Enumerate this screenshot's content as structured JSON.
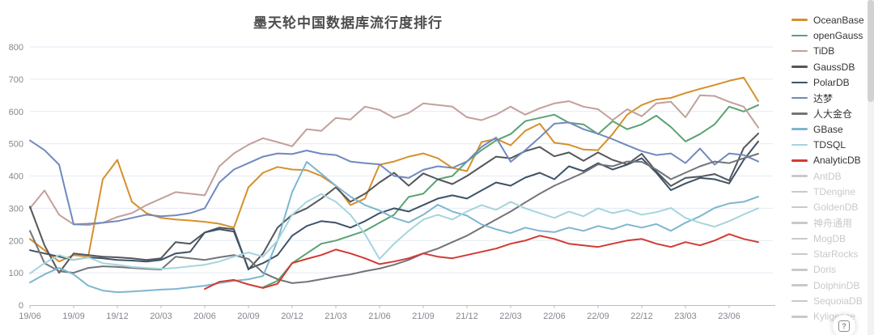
{
  "help_button": {
    "glyph": "?"
  },
  "legend": {
    "items": [
      {
        "label": "OceanBase",
        "color": "#D6902C",
        "enabled": true
      },
      {
        "label": "openGauss",
        "color": "#5BA272",
        "enabled": true
      },
      {
        "label": "TiDB",
        "color": "#C2A09A",
        "enabled": true
      },
      {
        "label": "GaussDB",
        "color": "#54565A",
        "enabled": true
      },
      {
        "label": "PolarDB",
        "color": "#3E5266",
        "enabled": true
      },
      {
        "label": "达梦",
        "color": "#7189BE",
        "enabled": true
      },
      {
        "label": "人大金仓",
        "color": "#737478",
        "enabled": true
      },
      {
        "label": "GBase",
        "color": "#7EB6CF",
        "enabled": true
      },
      {
        "label": "TDSQL",
        "color": "#A5D5DC",
        "enabled": true
      },
      {
        "label": "AnalyticDB",
        "color": "#D23A33",
        "enabled": true
      },
      {
        "label": "AntDB",
        "color": "#C8C9CC",
        "enabled": false
      },
      {
        "label": "TDengine",
        "color": "#C8C9CC",
        "enabled": false
      },
      {
        "label": "GoldenDB",
        "color": "#C8C9CC",
        "enabled": false
      },
      {
        "label": "神舟通用",
        "color": "#C8C9CC",
        "enabled": false
      },
      {
        "label": "MogDB",
        "color": "#C8C9CC",
        "enabled": false
      },
      {
        "label": "StarRocks",
        "color": "#C8C9CC",
        "enabled": false
      },
      {
        "label": "Doris",
        "color": "#C8C9CC",
        "enabled": false
      },
      {
        "label": "DolphinDB",
        "color": "#C8C9CC",
        "enabled": false
      },
      {
        "label": "SequoiaDB",
        "color": "#C8C9CC",
        "enabled": false
      },
      {
        "label": "Kyligence",
        "color": "#C8C9CC",
        "enabled": false
      }
    ]
  },
  "chart_data": {
    "type": "line",
    "title": "墨天轮中国数据库流行度排行",
    "xlabel": "",
    "ylabel": "",
    "ylim": [
      0,
      800
    ],
    "y_tick_labels": [
      "0",
      "100",
      "200",
      "300",
      "400",
      "500",
      "600",
      "700",
      "800"
    ],
    "y_ticks": [
      0,
      100,
      200,
      300,
      400,
      500,
      600,
      700,
      800
    ],
    "grid": true,
    "legend_position": "right",
    "x_axis": {
      "tick_labels": [
        "19/06",
        "19/09",
        "19/12",
        "20/03",
        "20/06",
        "20/09",
        "20/12",
        "21/03",
        "21/06",
        "21/09",
        "21/12",
        "22/03",
        "22/06",
        "22/09",
        "22/12",
        "23/03",
        "23/06"
      ],
      "months_per_tick": 3,
      "n_points": 51
    },
    "series": [
      {
        "name": "OceanBase",
        "color": "#D6902C",
        "values": [
          205,
          170,
          135,
          155,
          150,
          390,
          450,
          320,
          285,
          270,
          265,
          262,
          258,
          252,
          240,
          365,
          410,
          428,
          420,
          418,
          400,
          370,
          310,
          330,
          435,
          445,
          460,
          470,
          455,
          425,
          415,
          505,
          515,
          495,
          540,
          562,
          503,
          497,
          482,
          480,
          530,
          590,
          620,
          637,
          642,
          657,
          670,
          682,
          695,
          705,
          632
        ]
      },
      {
        "name": "openGauss",
        "color": "#5BA272",
        "values": [
          null,
          null,
          null,
          null,
          null,
          null,
          null,
          null,
          null,
          null,
          null,
          null,
          null,
          null,
          null,
          null,
          55,
          75,
          130,
          160,
          190,
          200,
          215,
          230,
          255,
          280,
          335,
          345,
          390,
          400,
          445,
          480,
          510,
          530,
          570,
          580,
          590,
          565,
          560,
          530,
          570,
          545,
          560,
          587,
          552,
          507,
          530,
          560,
          615,
          600,
          620
        ]
      },
      {
        "name": "TiDB",
        "color": "#C2A09A",
        "values": [
          300,
          355,
          280,
          250,
          248,
          255,
          273,
          285,
          310,
          330,
          350,
          345,
          340,
          430,
          470,
          497,
          517,
          505,
          492,
          545,
          540,
          580,
          575,
          615,
          605,
          580,
          595,
          625,
          620,
          615,
          582,
          573,
          590,
          615,
          590,
          610,
          625,
          632,
          615,
          607,
          573,
          607,
          585,
          625,
          630,
          582,
          650,
          648,
          630,
          615,
          550
        ]
      },
      {
        "name": "GaussDB",
        "color": "#54565A",
        "values": [
          305,
          185,
          100,
          160,
          155,
          150,
          148,
          145,
          140,
          145,
          195,
          190,
          225,
          240,
          235,
          110,
          160,
          240,
          280,
          300,
          330,
          365,
          320,
          345,
          380,
          410,
          370,
          408,
          390,
          375,
          400,
          430,
          460,
          455,
          477,
          490,
          461,
          473,
          447,
          473,
          450,
          436,
          469,
          414,
          369,
          394,
          398,
          406,
          386,
          487,
          532
        ]
      },
      {
        "name": "PolarDB",
        "color": "#3E5266",
        "values": [
          170,
          160,
          150,
          140,
          148,
          145,
          140,
          138,
          135,
          140,
          160,
          165,
          225,
          235,
          228,
          112,
          130,
          155,
          215,
          245,
          260,
          255,
          240,
          260,
          285,
          300,
          290,
          310,
          330,
          340,
          330,
          355,
          380,
          370,
          395,
          410,
          390,
          430,
          415,
          440,
          420,
          435,
          455,
          410,
          356,
          377,
          394,
          390,
          377,
          450,
          507
        ]
      },
      {
        "name": "达梦",
        "color": "#7189BE",
        "values": [
          510,
          480,
          435,
          250,
          252,
          255,
          260,
          270,
          280,
          275,
          278,
          285,
          300,
          380,
          420,
          440,
          460,
          470,
          468,
          479,
          469,
          465,
          445,
          440,
          436,
          400,
          394,
          419,
          430,
          425,
          445,
          490,
          519,
          444,
          480,
          520,
          562,
          566,
          545,
          531,
          514,
          495,
          477,
          465,
          470,
          440,
          485,
          435,
          470,
          465,
          445
        ]
      },
      {
        "name": "人大金仓",
        "color": "#737478",
        "values": [
          230,
          130,
          105,
          100,
          115,
          120,
          118,
          115,
          112,
          110,
          150,
          145,
          140,
          148,
          155,
          143,
          100,
          80,
          68,
          72,
          80,
          88,
          95,
          105,
          113,
          125,
          140,
          160,
          175,
          195,
          215,
          240,
          265,
          290,
          318,
          345,
          370,
          390,
          410,
          436,
          430,
          445,
          444,
          420,
          390,
          410,
          430,
          445,
          440,
          455,
          469
        ]
      },
      {
        "name": "GBase",
        "color": "#7EB6CF",
        "values": [
          70,
          95,
          115,
          95,
          60,
          45,
          40,
          42,
          45,
          48,
          50,
          55,
          60,
          68,
          75,
          80,
          90,
          200,
          350,
          444,
          407,
          370,
          336,
          310,
          293,
          270,
          256,
          280,
          311,
          290,
          277,
          250,
          235,
          223,
          240,
          230,
          226,
          240,
          230,
          245,
          235,
          250,
          240,
          251,
          230,
          255,
          275,
          301,
          315,
          320,
          336
        ]
      },
      {
        "name": "TDSQL",
        "color": "#A5D5DC",
        "values": [
          98,
          130,
          155,
          140,
          148,
          130,
          125,
          118,
          115,
          112,
          115,
          120,
          125,
          135,
          150,
          163,
          150,
          200,
          280,
          320,
          344,
          320,
          280,
          220,
          143,
          190,
          230,
          265,
          280,
          265,
          290,
          310,
          295,
          320,
          300,
          285,
          270,
          290,
          275,
          300,
          285,
          295,
          280,
          288,
          301,
          270,
          255,
          243,
          260,
          281,
          300
        ]
      },
      {
        "name": "AnalyticDB",
        "color": "#D23A33",
        "values": [
          null,
          null,
          null,
          null,
          null,
          null,
          null,
          null,
          null,
          null,
          null,
          null,
          50,
          72,
          78,
          64,
          53,
          66,
          130,
          143,
          155,
          172,
          160,
          145,
          127,
          135,
          145,
          160,
          150,
          145,
          155,
          165,
          175,
          190,
          200,
          215,
          205,
          190,
          185,
          180,
          190,
          200,
          205,
          190,
          180,
          195,
          185,
          200,
          220,
          205,
          195
        ]
      }
    ]
  }
}
